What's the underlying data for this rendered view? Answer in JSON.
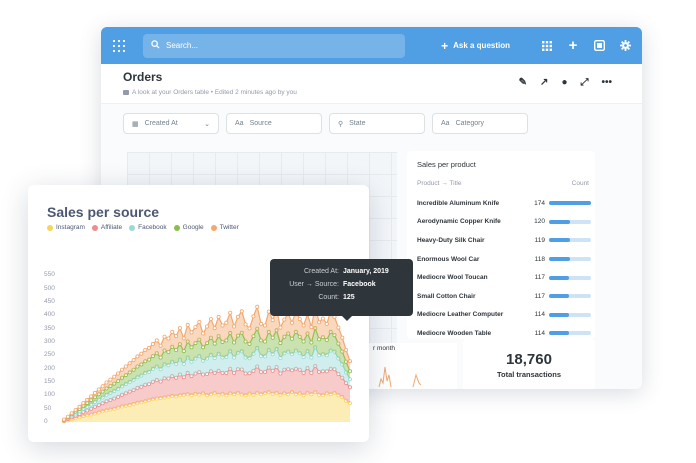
{
  "app": {
    "search_placeholder": "Search...",
    "ask_label": "Ask a question",
    "icons": [
      "logo-icon",
      "search-icon",
      "plus-icon",
      "grid-icon",
      "add-icon",
      "browse-icon",
      "settings-icon"
    ]
  },
  "header": {
    "title": "Orders",
    "subtitle": "A look at your Orders table  •  Edited 2 minutes ago by you",
    "actions": [
      "edit-icon",
      "share-icon",
      "history-icon",
      "fullscreen-icon",
      "more-icon"
    ]
  },
  "filters": [
    {
      "label": "Created At",
      "icon": "calendar-icon",
      "has_chevron": true
    },
    {
      "label": "Source",
      "icon": "text-icon"
    },
    {
      "label": "State",
      "icon": "location-icon"
    },
    {
      "label": "Category",
      "icon": "text-icon"
    }
  ],
  "product_card": {
    "title": "Sales per product",
    "col_product": "Product → Title",
    "col_count": "Count",
    "rows": [
      {
        "name": "Incredible Aluminum Knife",
        "count": "174",
        "value": 174
      },
      {
        "name": "Aerodynamic Copper Knife",
        "count": "120",
        "value": 120
      },
      {
        "name": "Heavy-Duty Silk Chair",
        "count": "119",
        "value": 119
      },
      {
        "name": "Enormous Wool Car",
        "count": "118",
        "value": 118
      },
      {
        "name": "Mediocre Wool Toucan",
        "count": "117",
        "value": 117
      },
      {
        "name": "Small Cotton Chair",
        "count": "117",
        "value": 117
      },
      {
        "name": "Mediocre Leather Computer",
        "count": "114",
        "value": 114
      },
      {
        "name": "Mediocre Wooden Table",
        "count": "114",
        "value": 114
      }
    ]
  },
  "small_card": {
    "label": "r month"
  },
  "total_card": {
    "value": "18,760",
    "label": "Total transactions"
  },
  "sales_card": {
    "title": "Sales per source"
  },
  "tooltip": {
    "rows": [
      {
        "key": "Created At:",
        "value": "January, 2019"
      },
      {
        "key": "User → Source:",
        "value": "Facebook"
      },
      {
        "key": "Count:",
        "value": "125"
      }
    ]
  },
  "colors": {
    "brand": "#509ee3",
    "Instagram": "#f9d45c",
    "Affiliate": "#ef8c8c",
    "Facebook": "#98d9d9",
    "Google": "#88bf4d",
    "Twitter": "#f2a86f"
  },
  "chart_data": {
    "type": "area",
    "stacked": true,
    "title": "Sales per source",
    "legend_position": "top-left",
    "ylim": [
      0,
      600
    ],
    "yticks": [
      "0",
      "50",
      "100",
      "150",
      "200",
      "250",
      "300",
      "350",
      "400",
      "450",
      "500",
      "550"
    ],
    "x": [
      1,
      2,
      3,
      4,
      5,
      6,
      7,
      8,
      9,
      10,
      11,
      12,
      13,
      14,
      15,
      16,
      17,
      18,
      19,
      20,
      21,
      22,
      23,
      24,
      25,
      26,
      27,
      28,
      29,
      30,
      31,
      32,
      33,
      34,
      35,
      36,
      37,
      38,
      39,
      40,
      41,
      42,
      43,
      44,
      45,
      46,
      47,
      48,
      49,
      50,
      51,
      52,
      53,
      54,
      55,
      56,
      57,
      58,
      59,
      60,
      61,
      62,
      63,
      64,
      65,
      66,
      67,
      68,
      69,
      70,
      71,
      72,
      73,
      74,
      75
    ],
    "series": [
      {
        "name": "Instagram",
        "values": [
          3,
          6,
          10,
          14,
          18,
          22,
          25,
          28,
          32,
          36,
          40,
          44,
          47,
          50,
          54,
          58,
          61,
          64,
          68,
          72,
          74,
          78,
          82,
          85,
          88,
          90,
          92,
          95,
          98,
          96,
          100,
          102,
          104,
          100,
          106,
          103,
          108,
          100,
          104,
          110,
          102,
          106,
          100,
          108,
          104,
          110,
          103,
          100,
          107,
          102,
          110,
          104,
          108,
          112,
          106,
          110,
          102,
          108,
          104,
          112,
          104,
          108,
          100,
          110,
          104,
          112,
          102,
          100,
          108,
          104,
          110,
          100,
          94,
          80,
          70
        ]
      },
      {
        "name": "Affiliate",
        "values": [
          2,
          5,
          8,
          10,
          12,
          16,
          18,
          22,
          25,
          28,
          30,
          34,
          36,
          38,
          40,
          44,
          47,
          50,
          52,
          56,
          58,
          62,
          60,
          66,
          70,
          62,
          72,
          68,
          74,
          70,
          78,
          66,
          80,
          72,
          76,
          84,
          70,
          80,
          86,
          74,
          90,
          78,
          84,
          92,
          80,
          88,
          94,
          82,
          76,
          90,
          98,
          84,
          80,
          92,
          86,
          96,
          80,
          88,
          94,
          82,
          96,
          88,
          84,
          92,
          80,
          98,
          86,
          90,
          82,
          96,
          88,
          80,
          72,
          66,
          60
        ]
      },
      {
        "name": "Facebook",
        "values": [
          2,
          4,
          6,
          8,
          10,
          12,
          14,
          16,
          18,
          20,
          22,
          24,
          26,
          28,
          30,
          32,
          34,
          36,
          38,
          40,
          42,
          44,
          46,
          48,
          50,
          46,
          52,
          50,
          54,
          52,
          56,
          50,
          58,
          54,
          56,
          60,
          52,
          58,
          62,
          56,
          64,
          58,
          60,
          66,
          58,
          62,
          68,
          60,
          56,
          64,
          70,
          60,
          58,
          66,
          62,
          68,
          58,
          62,
          66,
          60,
          68,
          62,
          60,
          64,
          58,
          70,
          62,
          64,
          60,
          68,
          66,
          58,
          50,
          40,
          30
        ]
      },
      {
        "name": "Google",
        "values": [
          1,
          3,
          5,
          7,
          9,
          11,
          14,
          16,
          18,
          20,
          22,
          24,
          26,
          28,
          30,
          32,
          34,
          36,
          38,
          40,
          42,
          44,
          46,
          48,
          50,
          44,
          52,
          50,
          56,
          52,
          58,
          48,
          60,
          54,
          58,
          62,
          50,
          58,
          64,
          54,
          66,
          58,
          62,
          68,
          56,
          64,
          70,
          60,
          54,
          66,
          72,
          58,
          56,
          68,
          62,
          70,
          56,
          62,
          68,
          58,
          70,
          62,
          58,
          66,
          56,
          72,
          60,
          64,
          58,
          70,
          62,
          56,
          48,
          40,
          30
        ]
      },
      {
        "name": "Twitter",
        "values": [
          1,
          2,
          4,
          6,
          8,
          10,
          12,
          14,
          16,
          18,
          20,
          22,
          24,
          26,
          28,
          30,
          32,
          34,
          36,
          38,
          40,
          42,
          44,
          46,
          48,
          44,
          52,
          50,
          56,
          52,
          60,
          48,
          62,
          56,
          60,
          66,
          52,
          62,
          70,
          58,
          72,
          62,
          66,
          76,
          60,
          70,
          80,
          64,
          58,
          74,
          82,
          62,
          60,
          76,
          66,
          80,
          58,
          64,
          74,
          60,
          78,
          66,
          60,
          72,
          58,
          80,
          64,
          70,
          60,
          78,
          68,
          60,
          52,
          44,
          38
        ]
      }
    ]
  }
}
